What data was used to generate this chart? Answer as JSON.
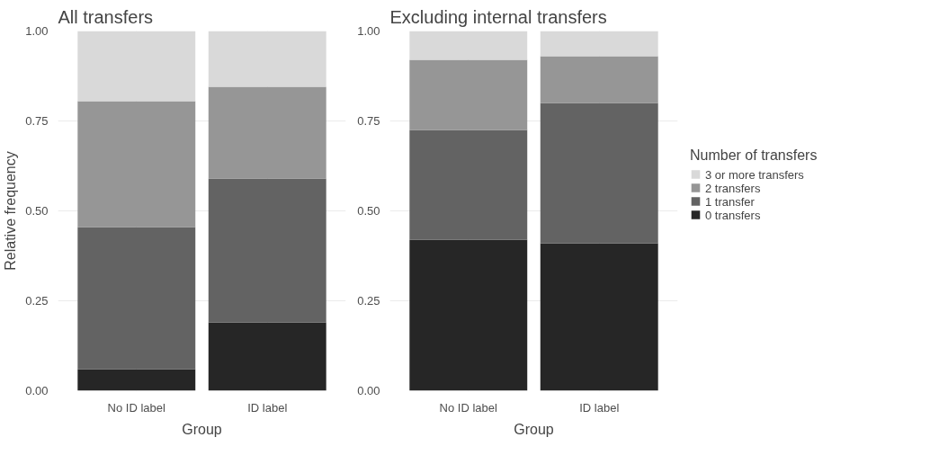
{
  "chart_data": [
    {
      "type": "bar",
      "title": "All transfers",
      "xlabel": "Group",
      "ylabel": "Relative frequency",
      "categories": [
        "No ID label",
        "ID label"
      ],
      "stacked": true,
      "ylim": [
        0,
        1
      ],
      "yticks": [
        {
          "value": 0,
          "label": "0.00"
        },
        {
          "value": 0.25,
          "label": "0.25"
        },
        {
          "value": 0.5,
          "label": "0.50"
        },
        {
          "value": 0.75,
          "label": "0.75"
        },
        {
          "value": 1,
          "label": "1.00"
        }
      ],
      "grid": true,
      "legend": false,
      "series": [
        {
          "color": "#262626",
          "values": [
            0.06,
            0.19
          ]
        },
        {
          "color": "#636363",
          "values": [
            0.395,
            0.4
          ]
        },
        {
          "color": "#969696",
          "values": [
            0.35,
            0.255
          ]
        },
        {
          "color": "#d9d9d9",
          "values": [
            0.195,
            0.155
          ]
        }
      ]
    },
    {
      "type": "bar",
      "title": "Excluding internal transfers",
      "xlabel": "Group",
      "categories": [
        "No ID label",
        "ID label"
      ],
      "stacked": true,
      "ylim": [
        0,
        1
      ],
      "yticks": [
        {
          "value": 0,
          "label": "0.00"
        },
        {
          "value": 0.25,
          "label": "0.25"
        },
        {
          "value": 0.5,
          "label": "0.50"
        },
        {
          "value": 0.75,
          "label": "0.75"
        },
        {
          "value": 1,
          "label": "1.00"
        }
      ],
      "grid": true,
      "legend": "right",
      "legend_title": "Number of transfers",
      "series": [
        {
          "name": "0 transfers",
          "color": "#262626",
          "values": [
            0.42,
            0.41
          ]
        },
        {
          "name": "1 transfer",
          "color": "#636363",
          "values": [
            0.305,
            0.39
          ]
        },
        {
          "name": "2 transfers",
          "color": "#969696",
          "values": [
            0.195,
            0.13
          ]
        },
        {
          "name": "3 or more transfers",
          "color": "#d9d9d9",
          "values": [
            0.08,
            0.07
          ]
        }
      ]
    }
  ]
}
